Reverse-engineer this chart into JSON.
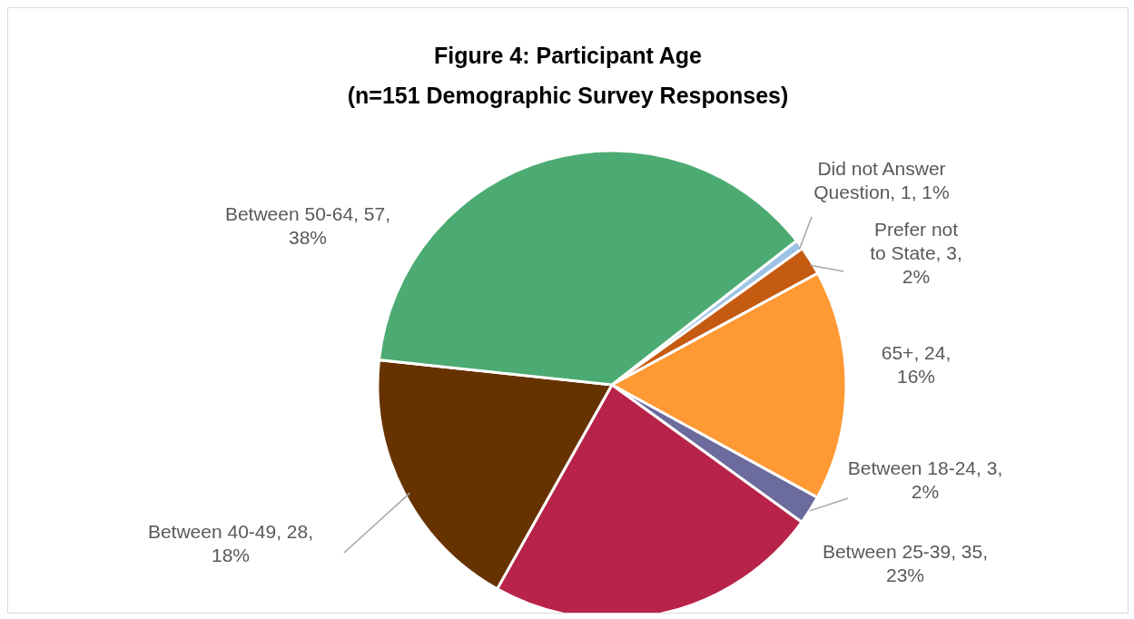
{
  "chart_data": {
    "type": "pie",
    "title": "Figure 4: Participant Age",
    "subtitle": "(n=151 Demographic Survey Responses)",
    "categories": [
      "Did not Answer Question",
      "Prefer not to State",
      "65+",
      "Between 18-24",
      "Between 25-39",
      "Between 40-49",
      "Between 50-64"
    ],
    "values": [
      1,
      3,
      24,
      3,
      35,
      28,
      57
    ],
    "colors": [
      "#9dc3e6",
      "#c55a11",
      "#ff9933",
      "#6b6b9e",
      "#b8234a",
      "#663300",
      "#4cab72"
    ],
    "value_labels": [
      ", 1, 1%",
      ", 3, 2%",
      ", 24, 16%",
      ", 3, 2%",
      ", 35, 23%",
      ", 28, 18%",
      ", 57, 38%"
    ]
  }
}
